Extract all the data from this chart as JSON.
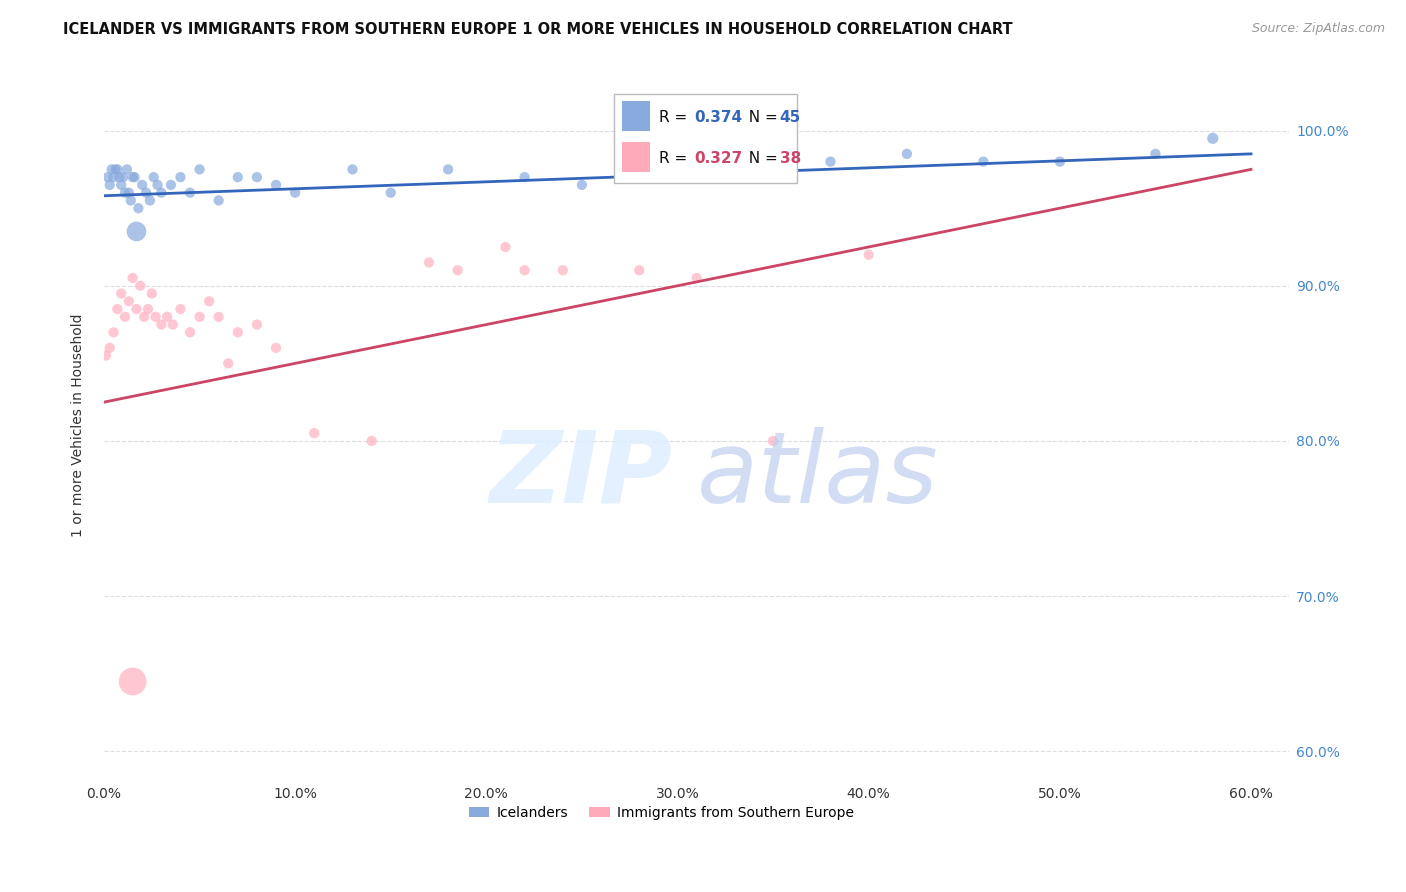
{
  "title": "ICELANDER VS IMMIGRANTS FROM SOUTHERN EUROPE 1 OR MORE VEHICLES IN HOUSEHOLD CORRELATION CHART",
  "source": "Source: ZipAtlas.com",
  "ylabel": "1 or more Vehicles in Household",
  "R1": 0.374,
  "N1": 45,
  "R2": 0.327,
  "N2": 38,
  "blue_color": "#88AADD",
  "pink_color": "#FFAABB",
  "blue_line_color": "#3366BB",
  "pink_line_color": "#CC4466",
  "legend_label1": "Icelanders",
  "legend_label2": "Immigrants from Southern Europe",
  "xlim": [
    0.0,
    62.0
  ],
  "ylim": [
    58.0,
    104.0
  ],
  "y_ticks": [
    60,
    70,
    80,
    90,
    100
  ],
  "x_ticks": [
    0,
    10,
    20,
    30,
    40,
    50,
    60
  ],
  "grid_color": "#DDDDDD",
  "background_color": "#FFFFFF",
  "blue_scatter_x": [
    0.2,
    0.3,
    0.4,
    0.5,
    0.6,
    0.7,
    0.8,
    0.9,
    1.0,
    1.1,
    1.2,
    1.3,
    1.4,
    1.5,
    1.6,
    1.8,
    2.0,
    2.2,
    2.4,
    2.6,
    2.8,
    3.0,
    3.5,
    4.0,
    5.0,
    6.0,
    7.0,
    8.0,
    10.0,
    13.0,
    18.0,
    22.0,
    28.0,
    33.0,
    38.0,
    42.0,
    46.0,
    50.0,
    55.0,
    58.0,
    25.0,
    15.0,
    9.0,
    4.5,
    1.7
  ],
  "blue_scatter_y": [
    97.0,
    96.5,
    97.5,
    97.0,
    97.5,
    97.5,
    97.0,
    96.5,
    97.0,
    96.0,
    97.5,
    96.0,
    95.5,
    97.0,
    97.0,
    95.0,
    96.5,
    96.0,
    95.5,
    97.0,
    96.5,
    96.0,
    96.5,
    97.0,
    97.5,
    95.5,
    97.0,
    97.0,
    96.0,
    97.5,
    97.5,
    97.0,
    97.0,
    98.0,
    98.0,
    98.5,
    98.0,
    98.0,
    98.5,
    99.5,
    96.5,
    96.0,
    96.5,
    96.0,
    93.5
  ],
  "blue_scatter_sizes": [
    55,
    55,
    55,
    55,
    55,
    55,
    55,
    55,
    55,
    55,
    55,
    55,
    55,
    55,
    55,
    55,
    55,
    55,
    55,
    55,
    55,
    55,
    55,
    55,
    55,
    55,
    55,
    55,
    55,
    55,
    55,
    55,
    55,
    55,
    55,
    55,
    55,
    55,
    55,
    65,
    55,
    55,
    55,
    55,
    200
  ],
  "pink_scatter_x": [
    0.1,
    0.3,
    0.5,
    0.7,
    0.9,
    1.1,
    1.3,
    1.5,
    1.7,
    1.9,
    2.1,
    2.3,
    2.5,
    2.7,
    3.0,
    3.3,
    3.6,
    4.0,
    4.5,
    5.0,
    5.5,
    6.0,
    7.0,
    8.0,
    9.0,
    11.0,
    14.0,
    17.0,
    21.0,
    24.0,
    28.0,
    31.0,
    35.0,
    40.0,
    22.0,
    18.5,
    6.5,
    1.5
  ],
  "pink_scatter_y": [
    85.5,
    86.0,
    87.0,
    88.5,
    89.5,
    88.0,
    89.0,
    90.5,
    88.5,
    90.0,
    88.0,
    88.5,
    89.5,
    88.0,
    87.5,
    88.0,
    87.5,
    88.5,
    87.0,
    88.0,
    89.0,
    88.0,
    87.0,
    87.5,
    86.0,
    80.5,
    80.0,
    91.5,
    92.5,
    91.0,
    91.0,
    90.5,
    80.0,
    92.0,
    91.0,
    91.0,
    85.0,
    64.5
  ],
  "pink_scatter_sizes": [
    55,
    55,
    55,
    55,
    55,
    55,
    55,
    55,
    55,
    55,
    55,
    55,
    55,
    55,
    55,
    55,
    55,
    55,
    55,
    55,
    55,
    55,
    55,
    55,
    55,
    55,
    55,
    55,
    55,
    55,
    55,
    55,
    55,
    55,
    55,
    55,
    55,
    400
  ],
  "blue_trend_x0": 0.0,
  "blue_trend_x1": 60.0,
  "blue_trend_y0": 95.8,
  "blue_trend_y1": 98.5,
  "pink_trend_x0": 0.0,
  "pink_trend_x1": 60.0,
  "pink_trend_y0": 82.5,
  "pink_trend_y1": 97.5
}
